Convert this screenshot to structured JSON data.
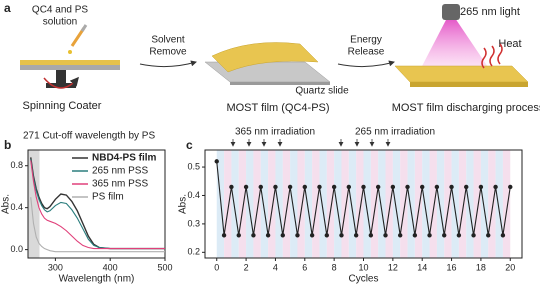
{
  "panel_labels": [
    "a",
    "b",
    "c"
  ],
  "schematic": {
    "source_label": [
      "QC4 and PS",
      "solution"
    ],
    "coater_label": "Spinning Coater",
    "step1_label": [
      "Solvent",
      "Remove"
    ],
    "substrate_label": "Quartz slide",
    "film_label": "MOST film (QC4-PS)",
    "step2_label": [
      "Energy",
      "Release"
    ],
    "light_label": "265 nm light",
    "heat_label": "Heat",
    "process_label": "MOST film discharging process"
  },
  "chart_data": [
    {
      "type": "line",
      "annotation": "271 Cut-off wavelength by PS",
      "xlabel": "Wavelength (nm)",
      "ylabel": "Abs.",
      "xlim": [
        250,
        500
      ],
      "ylim": [
        -0.08,
        0.95
      ],
      "xticks": [
        300,
        400,
        500
      ],
      "yticks": [
        {
          "value": 0,
          "label": "0.0"
        },
        0.4,
        0.8
      ],
      "shaded_range": [
        250,
        271
      ],
      "shade_color": "#d9d9d9",
      "x": [
        255,
        260,
        265,
        270,
        275,
        280,
        285,
        290,
        300,
        310,
        320,
        330,
        340,
        350,
        360,
        370,
        380,
        400,
        450,
        500
      ],
      "series": [
        {
          "name": "NBD4-PS film",
          "color": "#333333",
          "bold": true,
          "values": [
            0.88,
            0.7,
            0.58,
            0.5,
            0.44,
            0.4,
            0.39,
            0.41,
            0.48,
            0.53,
            0.52,
            0.46,
            0.37,
            0.25,
            0.13,
            0.05,
            0.02,
            0.01,
            0.01,
            0.01
          ]
        },
        {
          "name": "265 nm PSS",
          "color": "#2a7d7d",
          "values": [
            0.86,
            0.68,
            0.56,
            0.48,
            0.42,
            0.38,
            0.36,
            0.37,
            0.42,
            0.45,
            0.44,
            0.38,
            0.3,
            0.2,
            0.1,
            0.04,
            0.02,
            0.01,
            0.01,
            0.01
          ]
        },
        {
          "name": "365 nm PSS",
          "color": "#e0407a",
          "values": [
            0.85,
            0.65,
            0.5,
            0.4,
            0.34,
            0.3,
            0.28,
            0.27,
            0.25,
            0.22,
            0.18,
            0.13,
            0.08,
            0.04,
            0.02,
            0.01,
            0.01,
            0.01,
            0.01,
            0.01
          ]
        },
        {
          "name": "PS film",
          "color": "#b0b0b0",
          "values": [
            0.5,
            0.25,
            0.12,
            0.06,
            0.03,
            0.01,
            0,
            -0.01,
            -0.02,
            -0.02,
            -0.02,
            -0.02,
            -0.02,
            -0.02,
            -0.02,
            -0.02,
            -0.02,
            -0.02,
            -0.02,
            -0.02
          ]
        }
      ]
    },
    {
      "type": "line",
      "annotations": [
        "365 nm irradiation",
        "265 nm irradiation"
      ],
      "xlabel": "Cycles",
      "ylabel": "Abs.",
      "xlim": [
        -0.8,
        20.8
      ],
      "ylim": [
        0.18,
        0.56
      ],
      "xticks": [
        0,
        2,
        4,
        6,
        8,
        10,
        12,
        14,
        16,
        18,
        20
      ],
      "yticks": [
        0.2,
        0.3,
        0.4,
        0.5
      ],
      "markers": true,
      "band_colors": [
        "#d3e6f4",
        "#f3d7e8"
      ],
      "x": [
        0,
        0.5,
        1,
        1.5,
        2,
        2.5,
        3,
        3.5,
        4,
        4.5,
        5,
        5.5,
        6,
        6.5,
        7,
        7.5,
        8,
        8.5,
        9,
        9.5,
        10,
        10.5,
        11,
        11.5,
        12,
        12.5,
        13,
        13.5,
        14,
        14.5,
        15,
        15.5,
        16,
        16.5,
        17,
        17.5,
        18,
        18.5,
        19,
        19.5,
        20
      ],
      "series": [
        {
          "color": "#222222",
          "values": [
            0.52,
            0.26,
            0.43,
            0.26,
            0.43,
            0.26,
            0.43,
            0.26,
            0.43,
            0.26,
            0.43,
            0.26,
            0.43,
            0.26,
            0.43,
            0.26,
            0.43,
            0.26,
            0.43,
            0.26,
            0.43,
            0.26,
            0.43,
            0.26,
            0.43,
            0.26,
            0.43,
            0.26,
            0.43,
            0.26,
            0.43,
            0.26,
            0.43,
            0.26,
            0.43,
            0.26,
            0.43,
            0.26,
            0.43,
            0.26,
            0.43
          ]
        }
      ]
    }
  ]
}
